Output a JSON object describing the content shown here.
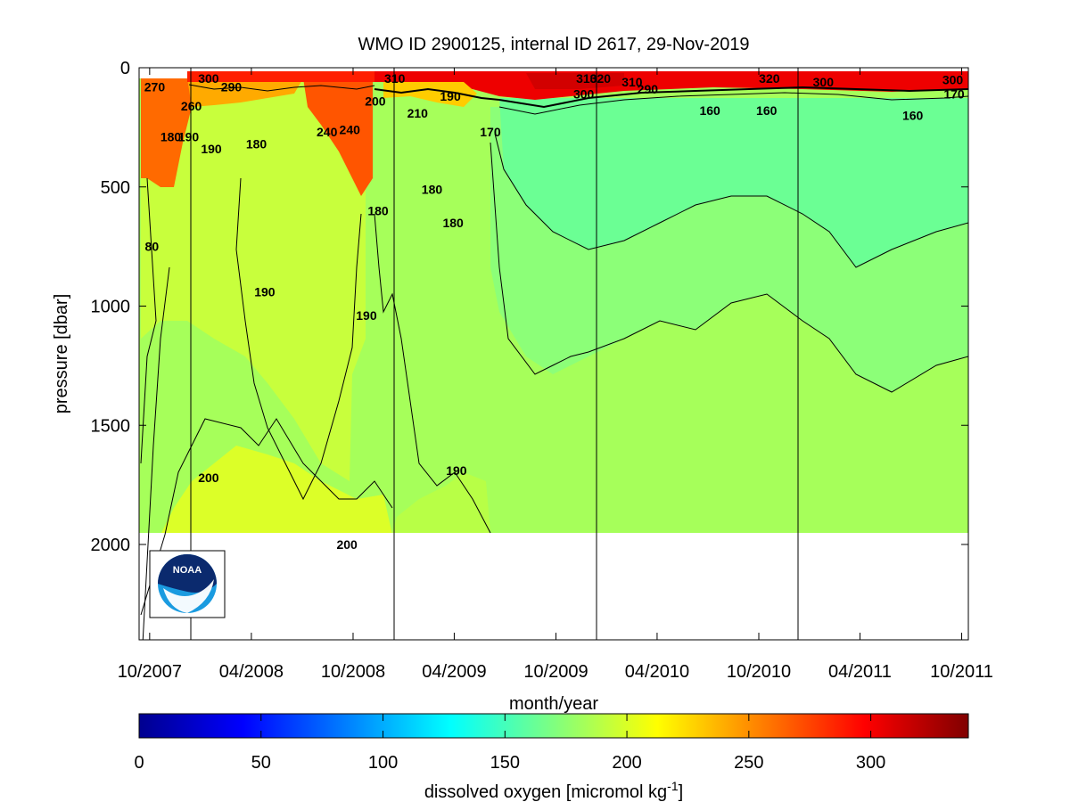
{
  "chart_data": {
    "type": "heatmap",
    "title": "WMO ID 2900125, internal ID 2617, 29-Nov-2019",
    "xlabel": "month/year",
    "ylabel": "pressure [dbar]",
    "x_ticks": [
      "10/2007",
      "04/2008",
      "10/2008",
      "04/2009",
      "10/2009",
      "04/2010",
      "10/2010",
      "04/2011",
      "10/2011"
    ],
    "y_ticks": [
      "0",
      "500",
      "1000",
      "1500",
      "2000"
    ],
    "ylim": [
      0,
      2400
    ],
    "y_reversed": true,
    "colorbar": {
      "label": "dissolved oxygen [micromol kg",
      "label_exponent": "-1",
      "label_suffix": "]",
      "ticks": [
        "0",
        "50",
        "100",
        "150",
        "200",
        "250",
        "300"
      ],
      "range": [
        0,
        340
      ],
      "colormap": "jet"
    },
    "contour_labels": [
      {
        "text": "270",
        "x": "2007-10-10",
        "p": 80
      },
      {
        "text": "300",
        "x": "2008-01-15",
        "p": 30
      },
      {
        "text": "290",
        "x": "2008-02-25",
        "p": 80
      },
      {
        "text": "260",
        "x": "2007-12-15",
        "p": 160
      },
      {
        "text": "190",
        "x": "2007-12-10",
        "p": 290
      },
      {
        "text": "180",
        "x": "2007-11-08",
        "p": 290
      },
      {
        "text": "190",
        "x": "2008-01-20",
        "p": 340
      },
      {
        "text": "180",
        "x": "2008-04-10",
        "p": 320
      },
      {
        "text": "240",
        "x": "2008-08-15",
        "p": 270
      },
      {
        "text": "240",
        "x": "2008-09-25",
        "p": 260
      },
      {
        "text": "200",
        "x": "2008-11-10",
        "p": 140
      },
      {
        "text": "310",
        "x": "2008-12-15",
        "p": 10
      },
      {
        "text": "190",
        "x": "2009-03-25",
        "p": 120
      },
      {
        "text": "210",
        "x": "2009-01-25",
        "p": 190
      },
      {
        "text": "170",
        "x": "2009-06-05",
        "p": 270
      },
      {
        "text": "180",
        "x": "2009-02-20",
        "p": 510
      },
      {
        "text": "180",
        "x": "2008-11-15",
        "p": 600
      },
      {
        "text": "180",
        "x": "2009-03-30",
        "p": 650
      },
      {
        "text": "80",
        "x": "2007-10-05",
        "p": 750
      },
      {
        "text": "190",
        "x": "2008-04-25",
        "p": 940
      },
      {
        "text": "190",
        "x": "2008-10-25",
        "p": 1040
      },
      {
        "text": "310",
        "x": "2009-11-25",
        "p": 10
      },
      {
        "text": "320",
        "x": "2009-12-20",
        "p": 40
      },
      {
        "text": "300",
        "x": "2009-11-20",
        "p": 110
      },
      {
        "text": "310",
        "x": "2010-02-15",
        "p": 60
      },
      {
        "text": "290",
        "x": "2010-03-15",
        "p": 90
      },
      {
        "text": "160",
        "x": "2010-07-05",
        "p": 180
      },
      {
        "text": "320",
        "x": "2010-10-20",
        "p": 10
      },
      {
        "text": "160",
        "x": "2010-10-15",
        "p": 180
      },
      {
        "text": "300",
        "x": "2011-01-25",
        "p": 60
      },
      {
        "text": "160",
        "x": "2011-07-05",
        "p": 200
      },
      {
        "text": "300",
        "x": "2011-09-15",
        "p": 50
      },
      {
        "text": "170",
        "x": "2011-09-25",
        "p": 110
      },
      {
        "text": "190",
        "x": "2009-04-05",
        "p": 1690
      },
      {
        "text": "200",
        "x": "2008-01-15",
        "p": 1720
      },
      {
        "text": "200",
        "x": "2008-09-20",
        "p": 2000
      }
    ]
  },
  "logo": {
    "text": "NOAA"
  }
}
